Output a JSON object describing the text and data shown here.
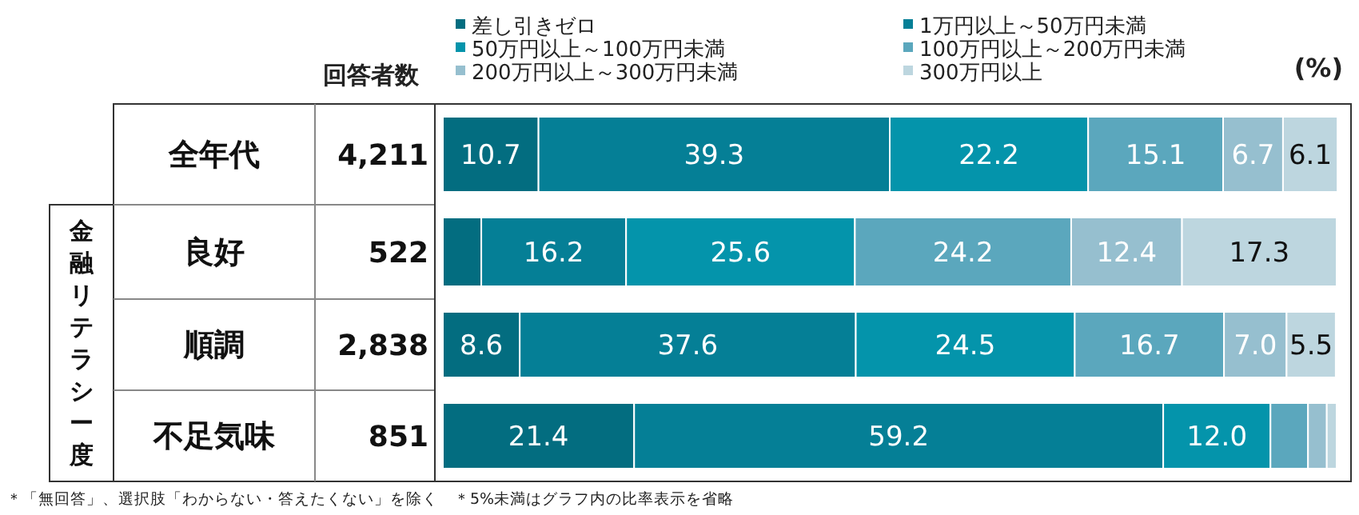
{
  "chart_data": {
    "type": "bar",
    "orientation": "horizontal",
    "stacked": true,
    "categories": [
      "全年代",
      "良好",
      "順調",
      "不足気味"
    ],
    "xlim": [
      0,
      100
    ],
    "tick_labels": "y",
    "legend": "top",
    "series": [
      {
        "name": "差し引きゼロ",
        "color": "#036d80",
        "values": [
          10.7,
          4.3,
          8.6,
          21.4
        ],
        "value_labels": [
          "10.7",
          null,
          "8.6",
          "21.4"
        ]
      },
      {
        "name": "1万円以上～50万円未満",
        "color": "#057f96",
        "values": [
          39.3,
          16.2,
          37.6,
          59.2
        ],
        "value_labels": [
          "39.3",
          "16.2",
          "37.6",
          "59.2"
        ]
      },
      {
        "name": "50万円以上～100万円未満",
        "color": "#0494ab",
        "values": [
          22.2,
          25.6,
          24.5,
          12.0
        ],
        "value_labels": [
          "22.2",
          "25.6",
          "24.5",
          "12.0"
        ]
      },
      {
        "name": "100万円以上～200万円未満",
        "color": "#5ba7bd",
        "values": [
          15.1,
          24.2,
          16.7,
          4.2
        ],
        "value_labels": [
          "15.1",
          "24.2",
          "16.7",
          null
        ]
      },
      {
        "name": "200万円以上～300万円未満",
        "color": "#96bfcf",
        "values": [
          6.7,
          12.4,
          7.0,
          2.1
        ],
        "value_labels": [
          "6.7",
          "12.4",
          "7.0",
          null
        ]
      },
      {
        "name": "300万円以上",
        "color": "#bdd6df",
        "values": [
          6.1,
          17.3,
          5.5,
          1.1
        ],
        "value_labels": [
          "6.1",
          "17.3",
          "5.5",
          null
        ]
      }
    ],
    "annotations": [
      "回答者数",
      "4,211",
      "522",
      "2,838",
      "851",
      "金融リテラシー度",
      "(%)",
      "＊「無回答」、選択肢「わからない・答えたくない」を除く　＊5%未満はグラフ内の比率表示を省略"
    ]
  }
}
